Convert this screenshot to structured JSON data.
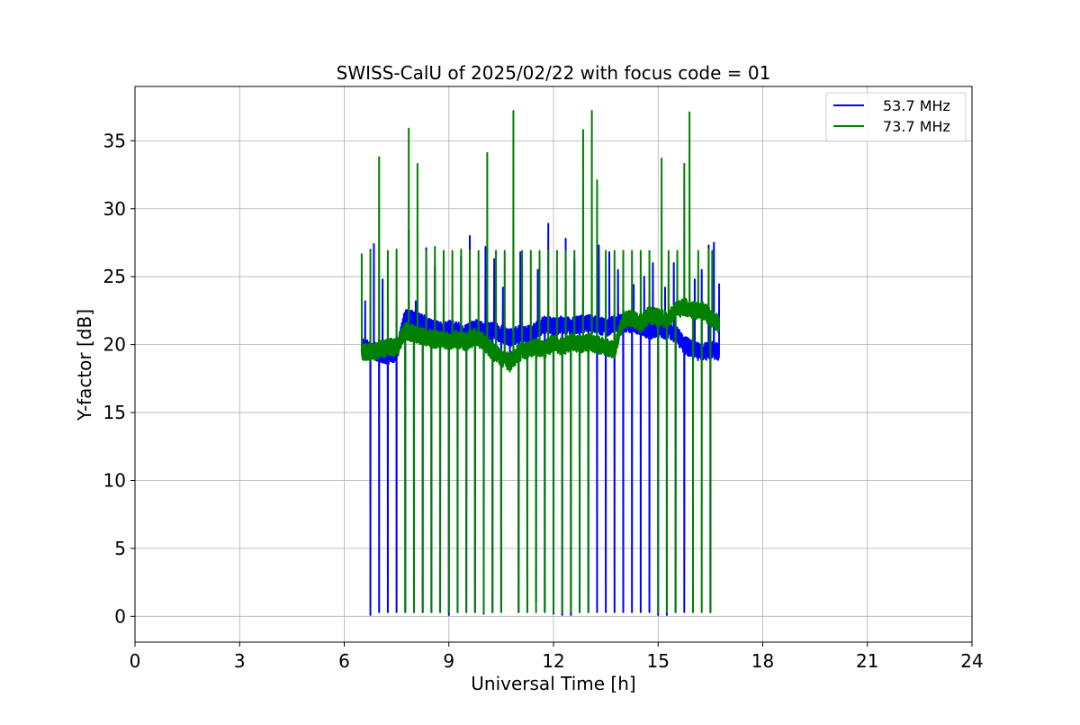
{
  "chart_data": {
    "type": "line",
    "title": "SWISS-CalU of 2025/02/22 with focus code = 01",
    "xlabel": "Universal Time [h]",
    "ylabel": "Y-factor [dB]",
    "xlim": [
      0,
      24
    ],
    "ylim": [
      -1.9,
      39
    ],
    "xticks": [
      0,
      3,
      6,
      9,
      12,
      15,
      18,
      21,
      24
    ],
    "xtick_labels": [
      "0",
      "3",
      "6",
      "9",
      "12",
      "15",
      "18",
      "21",
      "24"
    ],
    "yticks": [
      0,
      5,
      10,
      15,
      20,
      25,
      30,
      35
    ],
    "ytick_labels": [
      "0",
      "5",
      "10",
      "15",
      "20",
      "25",
      "30",
      "35"
    ],
    "grid": true,
    "legend_position": "upper-right",
    "x_range_observed": [
      6.5,
      16.75
    ],
    "calibration_interval_h": 0.25,
    "series": [
      {
        "name": "53.7 MHz",
        "color": "#0000ff",
        "baseline_points": [
          [
            6.5,
            19.8
          ],
          [
            6.75,
            19.6
          ],
          [
            7.0,
            19.4
          ],
          [
            7.25,
            19.2
          ],
          [
            7.5,
            19.4
          ],
          [
            7.75,
            22.0
          ],
          [
            8.0,
            21.8
          ],
          [
            8.25,
            21.6
          ],
          [
            8.5,
            21.2
          ],
          [
            8.75,
            21.0
          ],
          [
            9.0,
            21.2
          ],
          [
            9.25,
            21.0
          ],
          [
            9.5,
            20.8
          ],
          [
            9.75,
            21.2
          ],
          [
            10.0,
            21.0
          ],
          [
            10.25,
            21.0
          ],
          [
            10.5,
            20.8
          ],
          [
            10.75,
            20.5
          ],
          [
            11.0,
            20.8
          ],
          [
            11.25,
            20.8
          ],
          [
            11.5,
            21.0
          ],
          [
            11.75,
            21.5
          ],
          [
            12.0,
            21.3
          ],
          [
            12.25,
            21.5
          ],
          [
            12.5,
            21.3
          ],
          [
            12.75,
            21.5
          ],
          [
            13.0,
            21.6
          ],
          [
            13.25,
            21.5
          ],
          [
            13.5,
            21.2
          ],
          [
            13.75,
            21.6
          ],
          [
            14.0,
            21.6
          ],
          [
            14.25,
            21.5
          ],
          [
            14.5,
            21.4
          ],
          [
            14.75,
            21.0
          ],
          [
            15.0,
            21.2
          ],
          [
            15.25,
            21.0
          ],
          [
            15.5,
            20.8
          ],
          [
            15.75,
            20.0
          ],
          [
            16.0,
            19.6
          ],
          [
            16.25,
            19.4
          ],
          [
            16.5,
            19.6
          ],
          [
            16.75,
            19.5
          ]
        ],
        "peaks": [
          [
            6.6,
            23.2
          ],
          [
            6.85,
            27.4
          ],
          [
            7.1,
            24.8
          ],
          [
            7.85,
            28.4
          ],
          [
            8.05,
            23.2
          ],
          [
            8.35,
            27.1
          ],
          [
            8.6,
            25.8
          ],
          [
            8.85,
            24.5
          ],
          [
            9.35,
            26.5
          ],
          [
            9.6,
            28.0
          ],
          [
            10.05,
            27.2
          ],
          [
            10.3,
            26.3
          ],
          [
            10.55,
            24.2
          ],
          [
            11.05,
            26.8
          ],
          [
            11.55,
            25.5
          ],
          [
            11.85,
            28.9
          ],
          [
            12.35,
            27.8
          ],
          [
            12.6,
            26.3
          ],
          [
            12.85,
            25.0
          ],
          [
            13.3,
            27.3
          ],
          [
            13.6,
            26.8
          ],
          [
            13.85,
            25.5
          ],
          [
            14.3,
            24.4
          ],
          [
            14.6,
            25.0
          ],
          [
            14.85,
            26.0
          ],
          [
            15.2,
            24.2
          ],
          [
            15.45,
            26.0
          ],
          [
            16.05,
            24.8
          ],
          [
            16.25,
            25.5
          ],
          [
            16.45,
            27.3
          ],
          [
            16.6,
            27.5
          ],
          [
            16.75,
            24.5
          ]
        ],
        "dips": [
          [
            16.0,
            18.3
          ],
          [
            10.75,
            18.5
          ]
        ],
        "calibration_lows": [
          [
            6.5,
            0.8
          ],
          [
            6.75,
            0.1
          ],
          [
            7.0,
            0.3
          ],
          [
            7.25,
            0.3
          ],
          [
            7.5,
            0.3
          ],
          [
            7.75,
            0.3
          ],
          [
            8.0,
            0.3
          ],
          [
            8.25,
            0.3
          ],
          [
            8.5,
            0.3
          ],
          [
            8.75,
            0.3
          ],
          [
            9.0,
            0.1
          ],
          [
            9.25,
            0.3
          ],
          [
            9.5,
            0.3
          ],
          [
            9.75,
            0.3
          ],
          [
            10.0,
            0.2
          ],
          [
            10.25,
            0.3
          ],
          [
            10.5,
            0.3
          ],
          [
            10.75,
            0.3
          ],
          [
            11.0,
            0.3
          ],
          [
            11.25,
            0.3
          ],
          [
            11.5,
            1.1
          ],
          [
            11.75,
            0.3
          ],
          [
            12.0,
            0.2
          ],
          [
            12.25,
            0.1
          ],
          [
            12.5,
            0.1
          ],
          [
            12.75,
            0.3
          ],
          [
            13.0,
            0.3
          ],
          [
            13.25,
            0.3
          ],
          [
            13.5,
            0.3
          ],
          [
            13.75,
            0.3
          ],
          [
            14.0,
            0.3
          ],
          [
            14.25,
            0.3
          ],
          [
            14.5,
            0.3
          ],
          [
            14.75,
            0.3
          ],
          [
            15.0,
            0.1
          ],
          [
            15.25,
            0.1
          ],
          [
            15.5,
            0.3
          ],
          [
            15.75,
            0.3
          ],
          [
            16.0,
            0.1
          ],
          [
            16.25,
            0.3
          ],
          [
            16.5,
            0.3
          ]
        ]
      },
      {
        "name": "73.7 MHz",
        "color": "#008000",
        "baseline_points": [
          [
            6.5,
            19.5
          ],
          [
            6.75,
            19.4
          ],
          [
            7.0,
            19.6
          ],
          [
            7.25,
            19.8
          ],
          [
            7.5,
            19.8
          ],
          [
            7.75,
            21.0
          ],
          [
            8.0,
            20.8
          ],
          [
            8.25,
            20.6
          ],
          [
            8.5,
            20.4
          ],
          [
            8.75,
            20.4
          ],
          [
            9.0,
            20.3
          ],
          [
            9.25,
            20.4
          ],
          [
            9.5,
            20.2
          ],
          [
            9.75,
            20.6
          ],
          [
            10.0,
            20.2
          ],
          [
            10.25,
            19.5
          ],
          [
            10.5,
            19.0
          ],
          [
            10.75,
            18.7
          ],
          [
            11.0,
            19.4
          ],
          [
            11.25,
            19.6
          ],
          [
            11.5,
            19.8
          ],
          [
            11.75,
            19.6
          ],
          [
            12.0,
            20.2
          ],
          [
            12.25,
            19.8
          ],
          [
            12.5,
            20.2
          ],
          [
            12.75,
            20.0
          ],
          [
            13.0,
            20.2
          ],
          [
            13.25,
            20.0
          ],
          [
            13.5,
            19.8
          ],
          [
            13.75,
            19.6
          ],
          [
            14.0,
            21.8
          ],
          [
            14.25,
            22.0
          ],
          [
            14.5,
            21.5
          ],
          [
            14.75,
            22.2
          ],
          [
            15.0,
            22.0
          ],
          [
            15.25,
            21.8
          ],
          [
            15.5,
            22.5
          ],
          [
            15.75,
            22.8
          ],
          [
            16.0,
            22.5
          ],
          [
            16.25,
            22.6
          ],
          [
            16.5,
            22.0
          ],
          [
            16.75,
            21.5
          ]
        ],
        "peaks": [
          [
            6.5,
            26.7
          ],
          [
            6.75,
            27.0
          ],
          [
            7.0,
            33.8
          ],
          [
            7.25,
            26.9
          ],
          [
            7.5,
            27.0
          ],
          [
            7.85,
            35.9
          ],
          [
            8.1,
            33.3
          ],
          [
            8.35,
            26.9
          ],
          [
            8.6,
            27.2
          ],
          [
            8.85,
            26.9
          ],
          [
            9.1,
            26.9
          ],
          [
            9.35,
            27.0
          ],
          [
            9.6,
            26.9
          ],
          [
            9.85,
            26.9
          ],
          [
            10.1,
            34.1
          ],
          [
            10.35,
            26.9
          ],
          [
            10.6,
            26.9
          ],
          [
            10.85,
            37.2
          ],
          [
            11.1,
            26.9
          ],
          [
            11.35,
            26.9
          ],
          [
            11.6,
            26.9
          ],
          [
            11.85,
            26.9
          ],
          [
            12.1,
            26.9
          ],
          [
            12.35,
            26.9
          ],
          [
            12.6,
            26.9
          ],
          [
            12.85,
            35.8
          ],
          [
            13.1,
            37.2
          ],
          [
            13.25,
            32.1
          ],
          [
            13.5,
            26.9
          ],
          [
            13.75,
            26.9
          ],
          [
            14.0,
            26.9
          ],
          [
            14.25,
            26.9
          ],
          [
            14.5,
            26.9
          ],
          [
            14.75,
            26.9
          ],
          [
            15.1,
            33.7
          ],
          [
            15.3,
            26.9
          ],
          [
            15.55,
            26.9
          ],
          [
            15.75,
            33.3
          ],
          [
            15.9,
            37.1
          ],
          [
            16.15,
            26.9
          ],
          [
            16.45,
            27.0
          ],
          [
            16.55,
            26.9
          ]
        ],
        "dips": [
          [
            10.75,
            18.0
          ]
        ],
        "calibration_lows": [
          [
            6.75,
            0.3
          ],
          [
            7.0,
            0.3
          ],
          [
            7.25,
            0.3
          ],
          [
            7.5,
            0.3
          ],
          [
            7.75,
            0.3
          ],
          [
            8.0,
            0.3
          ],
          [
            8.25,
            0.3
          ],
          [
            8.5,
            0.3
          ],
          [
            8.75,
            0.3
          ],
          [
            9.0,
            0.3
          ],
          [
            9.25,
            0.3
          ],
          [
            9.5,
            0.3
          ],
          [
            9.75,
            0.3
          ],
          [
            10.0,
            0.3
          ],
          [
            10.25,
            0.3
          ],
          [
            10.5,
            0.3
          ],
          [
            10.75,
            0.3
          ],
          [
            11.0,
            0.3
          ],
          [
            11.25,
            0.3
          ],
          [
            11.5,
            0.3
          ],
          [
            11.75,
            0.3
          ],
          [
            12.0,
            0.3
          ],
          [
            12.25,
            0.3
          ],
          [
            12.5,
            0.3
          ],
          [
            12.75,
            0.3
          ],
          [
            13.0,
            0.3
          ],
          [
            13.25,
            0.3
          ],
          [
            13.5,
            0.3
          ],
          [
            13.75,
            0.3
          ],
          [
            14.0,
            0.3
          ],
          [
            14.25,
            0.3
          ],
          [
            14.5,
            0.3
          ],
          [
            14.75,
            0.3
          ],
          [
            15.0,
            0.3
          ],
          [
            15.25,
            0.3
          ],
          [
            15.5,
            0.3
          ],
          [
            15.75,
            0.3
          ],
          [
            16.0,
            0.3
          ],
          [
            16.25,
            0.3
          ],
          [
            16.5,
            0.3
          ]
        ]
      }
    ]
  }
}
